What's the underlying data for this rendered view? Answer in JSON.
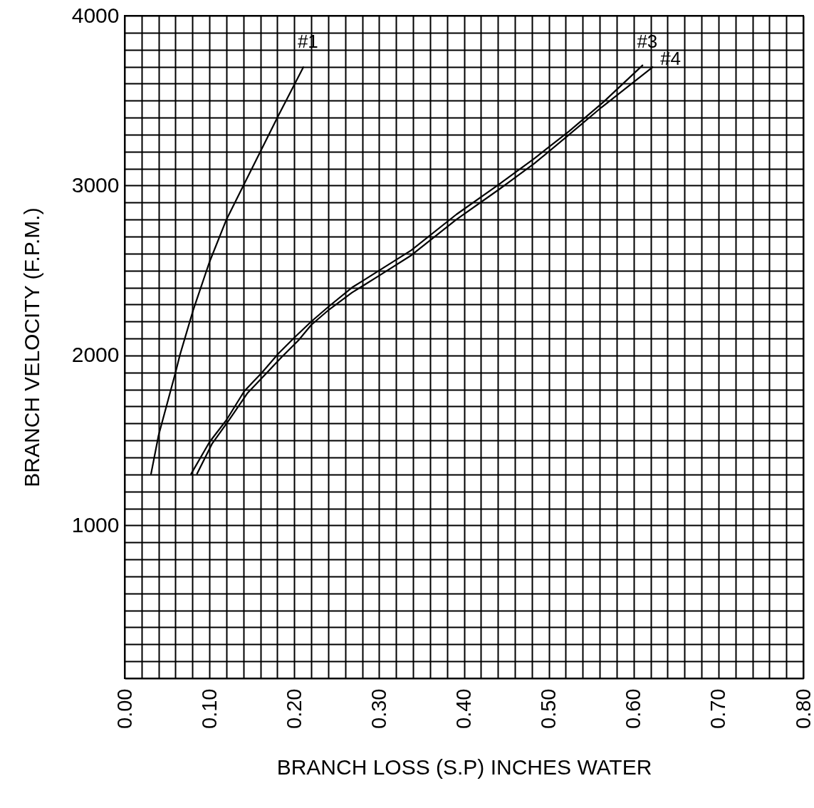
{
  "chart_data": {
    "type": "line",
    "xlabel": "BRANCH LOSS (S.P) INCHES WATER",
    "ylabel": "BRANCH VELOCITY (F.P.M.)",
    "xlim": [
      0,
      0.8
    ],
    "ylim": [
      100,
      4000
    ],
    "xticks": [
      {
        "value": 0,
        "label": "0.00"
      },
      {
        "value": 0.02,
        "label": null
      },
      {
        "value": 0.04,
        "label": null
      },
      {
        "value": 0.06,
        "label": null
      },
      {
        "value": 0.08,
        "label": null
      },
      {
        "value": 0.1,
        "label": "0.10"
      },
      {
        "value": 0.12,
        "label": null
      },
      {
        "value": 0.14,
        "label": null
      },
      {
        "value": 0.16,
        "label": null
      },
      {
        "value": 0.18,
        "label": null
      },
      {
        "value": 0.2,
        "label": "0.20"
      },
      {
        "value": 0.22,
        "label": null
      },
      {
        "value": 0.24,
        "label": null
      },
      {
        "value": 0.26,
        "label": null
      },
      {
        "value": 0.28,
        "label": null
      },
      {
        "value": 0.3,
        "label": "0.30"
      },
      {
        "value": 0.32,
        "label": null
      },
      {
        "value": 0.34,
        "label": null
      },
      {
        "value": 0.36,
        "label": null
      },
      {
        "value": 0.38,
        "label": null
      },
      {
        "value": 0.4,
        "label": "0.40"
      },
      {
        "value": 0.42,
        "label": null
      },
      {
        "value": 0.44,
        "label": null
      },
      {
        "value": 0.46,
        "label": null
      },
      {
        "value": 0.48,
        "label": null
      },
      {
        "value": 0.5,
        "label": "0.50"
      },
      {
        "value": 0.52,
        "label": null
      },
      {
        "value": 0.54,
        "label": null
      },
      {
        "value": 0.56,
        "label": null
      },
      {
        "value": 0.58,
        "label": null
      },
      {
        "value": 0.6,
        "label": "0.60"
      },
      {
        "value": 0.62,
        "label": null
      },
      {
        "value": 0.64,
        "label": null
      },
      {
        "value": 0.66,
        "label": null
      },
      {
        "value": 0.68,
        "label": null
      },
      {
        "value": 0.7,
        "label": "0.70"
      },
      {
        "value": 0.72,
        "label": null
      },
      {
        "value": 0.74,
        "label": null
      },
      {
        "value": 0.76,
        "label": null
      },
      {
        "value": 0.78,
        "label": null
      },
      {
        "value": 0.8,
        "label": "0.80"
      }
    ],
    "yticks": [
      {
        "value": 100,
        "label": null
      },
      {
        "value": 200,
        "label": null
      },
      {
        "value": 300,
        "label": null
      },
      {
        "value": 400,
        "label": null
      },
      {
        "value": 500,
        "label": null
      },
      {
        "value": 600,
        "label": null
      },
      {
        "value": 700,
        "label": null
      },
      {
        "value": 800,
        "label": null
      },
      {
        "value": 900,
        "label": null
      },
      1000,
      {
        "value": 1100,
        "label": null
      },
      {
        "value": 1200,
        "label": null
      },
      {
        "value": 1300,
        "label": null
      },
      {
        "value": 1400,
        "label": null
      },
      {
        "value": 1500,
        "label": null
      },
      {
        "value": 1600,
        "label": null
      },
      {
        "value": 1700,
        "label": null
      },
      {
        "value": 1800,
        "label": null
      },
      {
        "value": 1900,
        "label": null
      },
      2000,
      {
        "value": 2100,
        "label": null
      },
      {
        "value": 2200,
        "label": null
      },
      {
        "value": 2300,
        "label": null
      },
      {
        "value": 2400,
        "label": null
      },
      {
        "value": 2500,
        "label": null
      },
      {
        "value": 2600,
        "label": null
      },
      {
        "value": 2700,
        "label": null
      },
      {
        "value": 2800,
        "label": null
      },
      {
        "value": 2900,
        "label": null
      },
      3000,
      {
        "value": 3100,
        "label": null
      },
      {
        "value": 3200,
        "label": null
      },
      {
        "value": 3300,
        "label": null
      },
      {
        "value": 3400,
        "label": null
      },
      {
        "value": 3500,
        "label": null
      },
      {
        "value": 3600,
        "label": null
      },
      {
        "value": 3700,
        "label": null
      },
      {
        "value": 3800,
        "label": null
      },
      {
        "value": 3900,
        "label": null
      },
      4000
    ],
    "grid": true,
    "line_style": "solid",
    "marker": "none",
    "series": [
      {
        "name": "#1",
        "color": "#000000",
        "x": [
          0.031,
          0.04,
          0.06,
          0.065,
          0.081,
          0.1,
          0.12,
          0.141,
          0.181,
          0.211
        ],
        "values": [
          1300,
          1530,
          1900,
          2000,
          2270,
          2550,
          2800,
          3010,
          3410,
          3700
        ]
      },
      {
        "name": "#3",
        "color": "#000000",
        "x": [
          0.078,
          0.1,
          0.12,
          0.141,
          0.162,
          0.181,
          0.201,
          0.22,
          0.241,
          0.268,
          0.3,
          0.338,
          0.391,
          0.442,
          0.483,
          0.524,
          0.564,
          0.611
        ],
        "values": [
          1300,
          1490,
          1620,
          1790,
          1900,
          2010,
          2110,
          2200,
          2290,
          2400,
          2500,
          2620,
          2830,
          3010,
          3160,
          3320,
          3490,
          3710
        ]
      },
      {
        "name": "#4",
        "color": "#000000",
        "x": [
          0.085,
          0.103,
          0.123,
          0.145,
          0.166,
          0.185,
          0.205,
          0.22,
          0.241,
          0.268,
          0.3,
          0.338,
          0.391,
          0.442,
          0.483,
          0.524,
          0.562,
          0.623
        ],
        "values": [
          1300,
          1480,
          1620,
          1780,
          1890,
          1990,
          2090,
          2180,
          2270,
          2370,
          2470,
          2590,
          2800,
          2980,
          3130,
          3300,
          3460,
          3700
        ]
      }
    ]
  }
}
